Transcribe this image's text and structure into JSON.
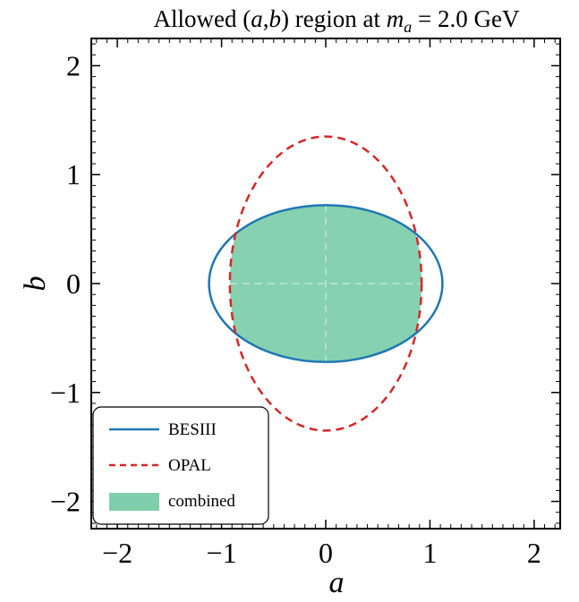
{
  "chart_data": {
    "type": "region",
    "title_parts": {
      "before": "Allowed (",
      "a": "a",
      "comma": ",",
      "b": "b",
      "mid": ") region at ",
      "m": "m",
      "sub": "a",
      "after": " = 2.0 GeV"
    },
    "xlabel": "a",
    "ylabel": "b",
    "xlim": [
      -2.25,
      2.25
    ],
    "ylim": [
      -2.25,
      2.25
    ],
    "xticks": [
      -2,
      -1,
      0,
      1,
      2
    ],
    "yticks": [
      -2,
      -1,
      0,
      1,
      2
    ],
    "xtick_labels": [
      "−2",
      "−1",
      "0",
      "1",
      "2"
    ],
    "ytick_labels": [
      "−2",
      "−1",
      "0",
      "1",
      "2"
    ],
    "grid": false,
    "legend_position": "bottom-left",
    "series": [
      {
        "name": "BESIII",
        "shape": "ellipse",
        "center": [
          0,
          0
        ],
        "semi_a": 1.12,
        "semi_b": 0.72,
        "style": "solid",
        "color": "#1f77b4"
      },
      {
        "name": "OPAL",
        "shape": "ellipse",
        "center": [
          0,
          0
        ],
        "semi_a": 0.92,
        "semi_b": 1.35,
        "style": "dashed",
        "color": "#d62728"
      },
      {
        "name": "combined",
        "shape": "intersection",
        "of": [
          "BESIII",
          "OPAL"
        ],
        "color": "#7fcfac"
      }
    ]
  }
}
